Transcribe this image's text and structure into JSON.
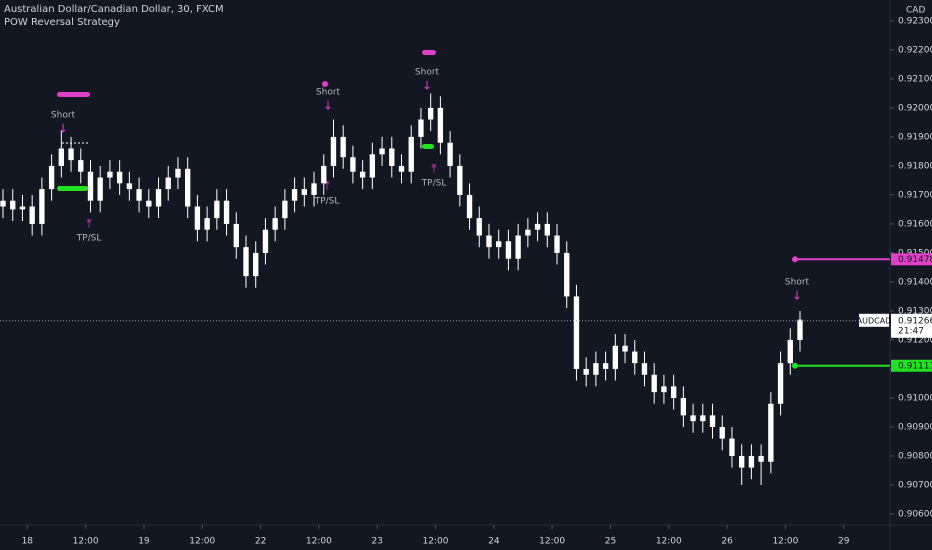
{
  "chart_data": {
    "type": "candlestick",
    "title": "Australian Dollar/Canadian Dollar, 30, FXCM",
    "subtitle": "POW Reversal Strategy",
    "unit": "CAD",
    "symbol": "AUDCAD",
    "countdown": "21:47",
    "last_price": 0.91266,
    "color": "#ffffff",
    "open": [
      0.9166,
      0.9168,
      0.9165,
      0.9166,
      0.916,
      0.9172,
      0.918,
      0.9186,
      0.9182,
      0.9178,
      0.9168,
      0.9176,
      0.9178,
      0.9174,
      0.9172,
      0.9168,
      0.9166,
      0.9172,
      0.9176,
      0.9179,
      0.9166,
      0.9158,
      0.9162,
      0.9168,
      0.916,
      0.9152,
      0.9142,
      0.915,
      0.9158,
      0.9162,
      0.9168,
      0.9172,
      0.917,
      0.9174,
      0.918,
      0.919,
      0.9183,
      0.9178,
      0.9176,
      0.9184,
      0.9186,
      0.918,
      0.9178,
      0.919,
      0.9196,
      0.92,
      0.9188,
      0.918,
      0.917,
      0.9162,
      0.9156,
      0.9152,
      0.9154,
      0.9148,
      0.9156,
      0.9158,
      0.916,
      0.9156,
      0.915,
      0.9135,
      0.911,
      0.9108,
      0.9112,
      0.911,
      0.9118,
      0.9116,
      0.9112,
      0.9108,
      0.9102,
      0.9104,
      0.91,
      0.9094,
      0.9092,
      0.9094,
      0.909,
      0.9086,
      0.908,
      0.9076,
      0.908,
      0.9078,
      0.9098,
      0.9112,
      0.912
    ],
    "high": [
      0.9172,
      0.9172,
      0.917,
      0.917,
      0.9176,
      0.9184,
      0.9192,
      0.919,
      0.9186,
      0.9182,
      0.918,
      0.9182,
      0.9182,
      0.9178,
      0.9176,
      0.9172,
      0.9176,
      0.918,
      0.9183,
      0.9183,
      0.917,
      0.9166,
      0.9172,
      0.9172,
      0.9164,
      0.9156,
      0.9154,
      0.9162,
      0.9166,
      0.9172,
      0.9176,
      0.9176,
      0.9178,
      0.9184,
      0.9196,
      0.9194,
      0.9187,
      0.9182,
      0.9188,
      0.919,
      0.919,
      0.9184,
      0.9194,
      0.92,
      0.9205,
      0.9204,
      0.9192,
      0.9184,
      0.9174,
      0.9166,
      0.916,
      0.9158,
      0.9158,
      0.916,
      0.9162,
      0.9164,
      0.9164,
      0.916,
      0.9154,
      0.9139,
      0.9114,
      0.9116,
      0.9116,
      0.9122,
      0.9122,
      0.912,
      0.9116,
      0.9112,
      0.9108,
      0.9108,
      0.9104,
      0.9098,
      0.9098,
      0.9098,
      0.9094,
      0.909,
      0.9084,
      0.9084,
      0.9084,
      0.9102,
      0.9116,
      0.9124,
      0.913
    ],
    "low": [
      0.9162,
      0.9161,
      0.9161,
      0.9156,
      0.9156,
      0.9168,
      0.9176,
      0.9178,
      0.9174,
      0.9164,
      0.9164,
      0.9172,
      0.917,
      0.9168,
      0.9164,
      0.9162,
      0.9162,
      0.9168,
      0.9172,
      0.9162,
      0.9154,
      0.9154,
      0.9158,
      0.9156,
      0.9148,
      0.9138,
      0.9138,
      0.9146,
      0.9154,
      0.9158,
      0.9164,
      0.9166,
      0.9166,
      0.917,
      0.9176,
      0.9179,
      0.9174,
      0.9172,
      0.9172,
      0.918,
      0.9176,
      0.9174,
      0.9174,
      0.9186,
      0.9192,
      0.9184,
      0.9176,
      0.9166,
      0.9158,
      0.9152,
      0.9148,
      0.9148,
      0.9144,
      0.9144,
      0.9152,
      0.9154,
      0.9152,
      0.9146,
      0.9131,
      0.9106,
      0.9104,
      0.9104,
      0.9106,
      0.9106,
      0.9112,
      0.9108,
      0.9104,
      0.9098,
      0.9098,
      0.9096,
      0.909,
      0.9088,
      0.9088,
      0.9086,
      0.9082,
      0.9076,
      0.907,
      0.9072,
      0.907,
      0.9074,
      0.9094,
      0.9108,
      0.9116
    ],
    "close": [
      0.9168,
      0.9165,
      0.9166,
      0.916,
      0.9172,
      0.918,
      0.9186,
      0.9182,
      0.9178,
      0.9168,
      0.9176,
      0.9178,
      0.9174,
      0.9172,
      0.9168,
      0.9166,
      0.9172,
      0.9176,
      0.9179,
      0.9166,
      0.9158,
      0.9162,
      0.9168,
      0.916,
      0.9152,
      0.9142,
      0.915,
      0.9158,
      0.9162,
      0.9168,
      0.9172,
      0.917,
      0.9174,
      0.918,
      0.919,
      0.9183,
      0.9178,
      0.9176,
      0.9184,
      0.9186,
      0.918,
      0.9178,
      0.919,
      0.9196,
      0.92,
      0.9188,
      0.918,
      0.917,
      0.9162,
      0.9156,
      0.9152,
      0.9154,
      0.9148,
      0.9156,
      0.9158,
      0.916,
      0.9156,
      0.915,
      0.9135,
      0.911,
      0.9108,
      0.9112,
      0.911,
      0.9118,
      0.9116,
      0.9112,
      0.9108,
      0.9102,
      0.9104,
      0.91,
      0.9094,
      0.9092,
      0.9094,
      0.909,
      0.9086,
      0.908,
      0.9076,
      0.908,
      0.9078,
      0.9098,
      0.9112,
      0.912,
      0.9127
    ],
    "xlim": [
      -0.31,
      91.26
    ],
    "xticks": [
      {
        "value": 2.5,
        "label": "18"
      },
      {
        "value": 8.5,
        "label": "12:00"
      },
      {
        "value": 14.5,
        "label": "19"
      },
      {
        "value": 20.5,
        "label": "12:00"
      },
      {
        "value": 26.5,
        "label": "22"
      },
      {
        "value": 32.5,
        "label": "12:00"
      },
      {
        "value": 38.5,
        "label": "23"
      },
      {
        "value": 44.5,
        "label": "12:00"
      },
      {
        "value": 50.5,
        "label": "24"
      },
      {
        "value": 56.5,
        "label": "12:00"
      },
      {
        "value": 62.5,
        "label": "25"
      },
      {
        "value": 68.5,
        "label": "12:00"
      },
      {
        "value": 74.5,
        "label": "26"
      },
      {
        "value": 80.5,
        "label": "12:00"
      },
      {
        "value": 86.5,
        "label": "29"
      }
    ],
    "ylim": [
      0.90562,
      0.92372
    ],
    "yticks": [
      {
        "value": 0.906,
        "label": "0.90600"
      },
      {
        "value": 0.907,
        "label": "0.90700"
      },
      {
        "value": 0.908,
        "label": "0.90800"
      },
      {
        "value": 0.909,
        "label": "0.90900"
      },
      {
        "value": 0.91,
        "label": "0.91000"
      },
      {
        "value": 0.911,
        "label": "0.91100"
      },
      {
        "value": 0.912,
        "label": "0.91200"
      },
      {
        "value": 0.913,
        "label": "0.91300"
      },
      {
        "value": 0.914,
        "label": "0.91400"
      },
      {
        "value": 0.915,
        "label": "0.91500"
      },
      {
        "value": 0.916,
        "label": "0.91600"
      },
      {
        "value": 0.917,
        "label": "0.91700"
      },
      {
        "value": 0.918,
        "label": "0.91800"
      },
      {
        "value": 0.919,
        "label": "0.91900"
      },
      {
        "value": 0.92,
        "label": "0.92000"
      },
      {
        "value": 0.921,
        "label": "0.92100"
      },
      {
        "value": 0.922,
        "label": "0.92200"
      },
      {
        "value": 0.923,
        "label": "0.92300"
      }
    ],
    "levels": [
      {
        "value": 0.91478,
        "color": "#e040c8"
      },
      {
        "value": 0.91111,
        "color": "#22e022"
      }
    ],
    "annotations": [
      "Short",
      "Short",
      "Short",
      "Short",
      "TP/SL",
      "TP/SL",
      "TP/SL"
    ]
  }
}
